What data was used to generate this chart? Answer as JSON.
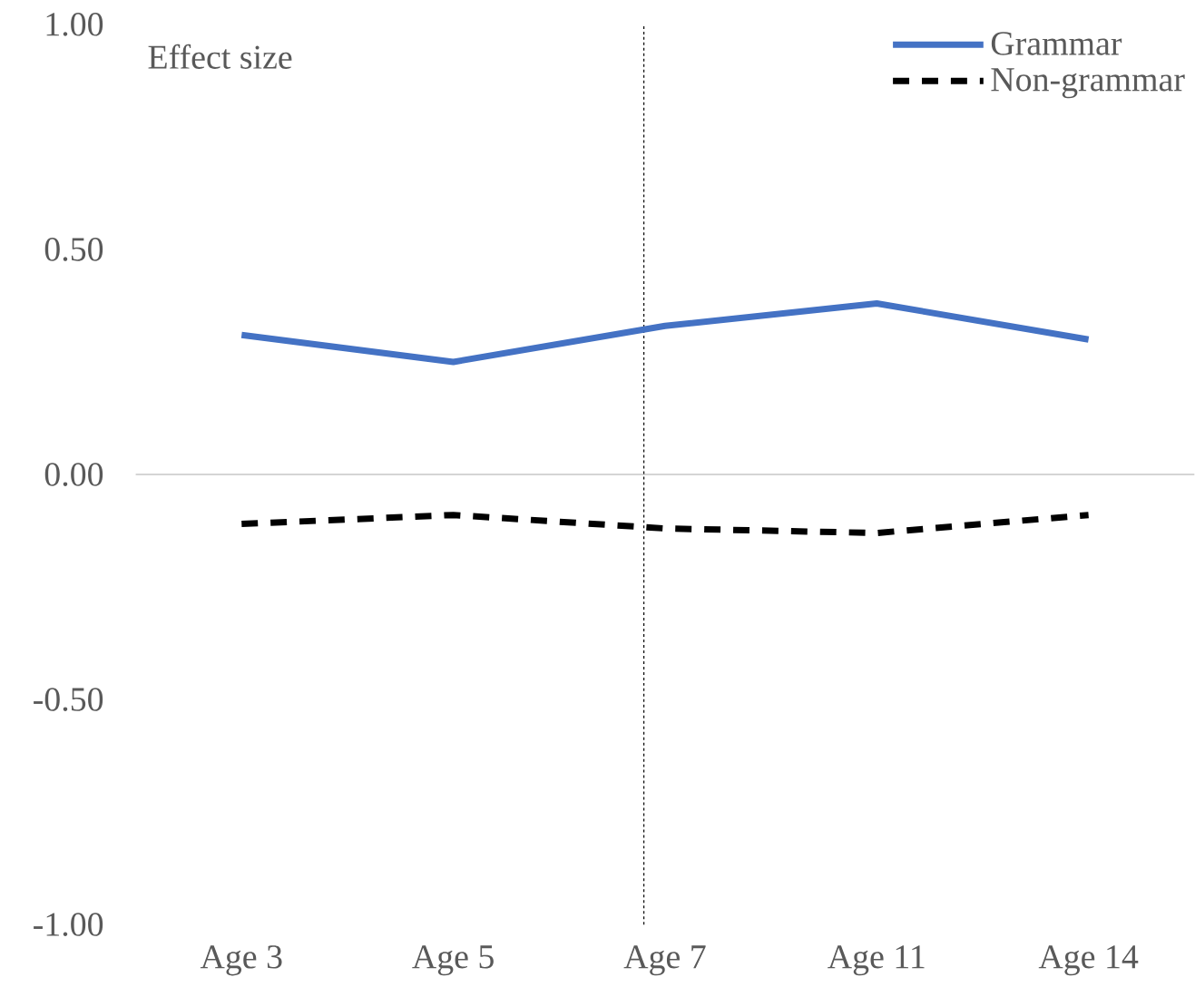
{
  "chart_data": {
    "type": "line",
    "ylabel": "Effect size",
    "categories": [
      "Age 3",
      "Age 5",
      "Age 7",
      "Age 11",
      "Age 14"
    ],
    "series": [
      {
        "name": "Grammar",
        "color": "#4472c4",
        "line_style": "solid",
        "values": [
          0.31,
          0.25,
          0.33,
          0.38,
          0.3
        ]
      },
      {
        "name": "Non-grammar",
        "color": "#000000",
        "line_style": "dashed",
        "values": [
          -0.11,
          -0.09,
          -0.12,
          -0.13,
          -0.09
        ]
      }
    ],
    "ylim": [
      -1,
      1
    ],
    "yticks": [
      {
        "value": -1,
        "label": "-1.00"
      },
      {
        "value": -0.5,
        "label": "-0.50"
      },
      {
        "value": 0,
        "label": "0.00"
      },
      {
        "value": 0.5,
        "label": "0.50"
      },
      {
        "value": 1,
        "label": "1.00"
      }
    ],
    "ref_lines": [
      {
        "axis": "x",
        "value": "Age 7",
        "color": "#000000",
        "line_style": "dotted"
      }
    ],
    "legend": "top right",
    "marker": "none"
  }
}
